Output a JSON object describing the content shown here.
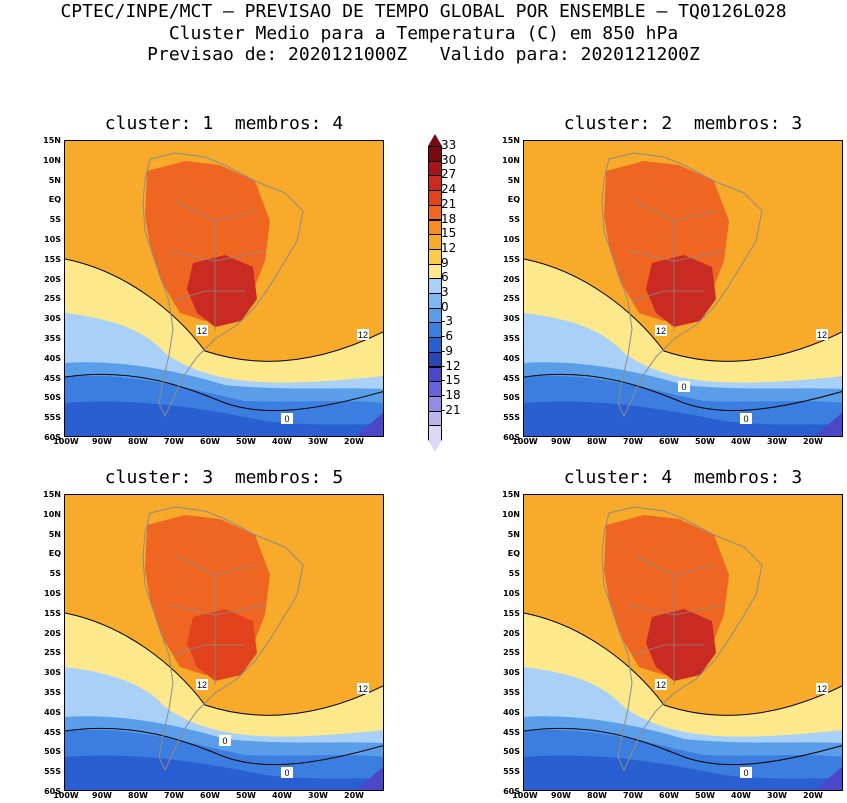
{
  "header": {
    "line1": "CPTEC/INPE/MCT – PREVISAO DE TEMPO GLOBAL POR ENSEMBLE – TQ0126L028",
    "line2": "Cluster Medio para a Temperatura (C) em 850 hPa",
    "line3": "Previsao de: 2020121000Z   Valido para: 2020121200Z"
  },
  "panels": [
    {
      "title": "cluster: 1  membros: 4",
      "contour_labels": [
        "12",
        "12",
        "0"
      ]
    },
    {
      "title": "cluster: 2  membros: 3",
      "contour_labels": [
        "12",
        "12",
        "0",
        "0"
      ]
    },
    {
      "title": "cluster: 3  membros: 5",
      "contour_labels": [
        "12",
        "12",
        "0",
        "0"
      ]
    },
    {
      "title": "cluster: 4  membros: 3",
      "contour_labels": [
        "12",
        "12",
        "0"
      ]
    }
  ],
  "lat_ticks": [
    "15N",
    "10N",
    "5N",
    "EQ",
    "5S",
    "10S",
    "15S",
    "20S",
    "25S",
    "30S",
    "35S",
    "40S",
    "45S",
    "50S",
    "55S",
    "60S"
  ],
  "lon_ticks": [
    "100W",
    "90W",
    "80W",
    "70W",
    "60W",
    "50W",
    "40W",
    "30W",
    "20W"
  ],
  "colorbar": {
    "labels": [
      "33",
      "30",
      "27",
      "24",
      "21",
      "18",
      "15",
      "12",
      "9",
      "6",
      "3",
      "0",
      "-3",
      "-6",
      "-9",
      "-12",
      "-15",
      "-18",
      "-21"
    ],
    "colors": [
      "#7a0a12",
      "#a8141c",
      "#c92a22",
      "#e2421c",
      "#ee6622",
      "#f48c22",
      "#f8aa2a",
      "#fdcd4a",
      "#fde88c",
      "#a9d1f7",
      "#7fb8f0",
      "#5a9de8",
      "#3b7ee0",
      "#2a5fd2",
      "#2748b4",
      "#4a48c8",
      "#6a62d8",
      "#948be6",
      "#bdb4f0",
      "#ddd8f6"
    ]
  },
  "map_colors": {
    "ocean_warm": "#f8aa2a",
    "warm": "#ee6622",
    "hot": "#e2421c",
    "hotter": "#c92a22",
    "mild": "#fde88c",
    "cool": "#a9d1f7",
    "cold": "#5a9de8",
    "colder": "#3b7ee0",
    "coldest": "#2a5fd2",
    "deep": "#4a48c8",
    "coast": "#8c8c8c"
  }
}
